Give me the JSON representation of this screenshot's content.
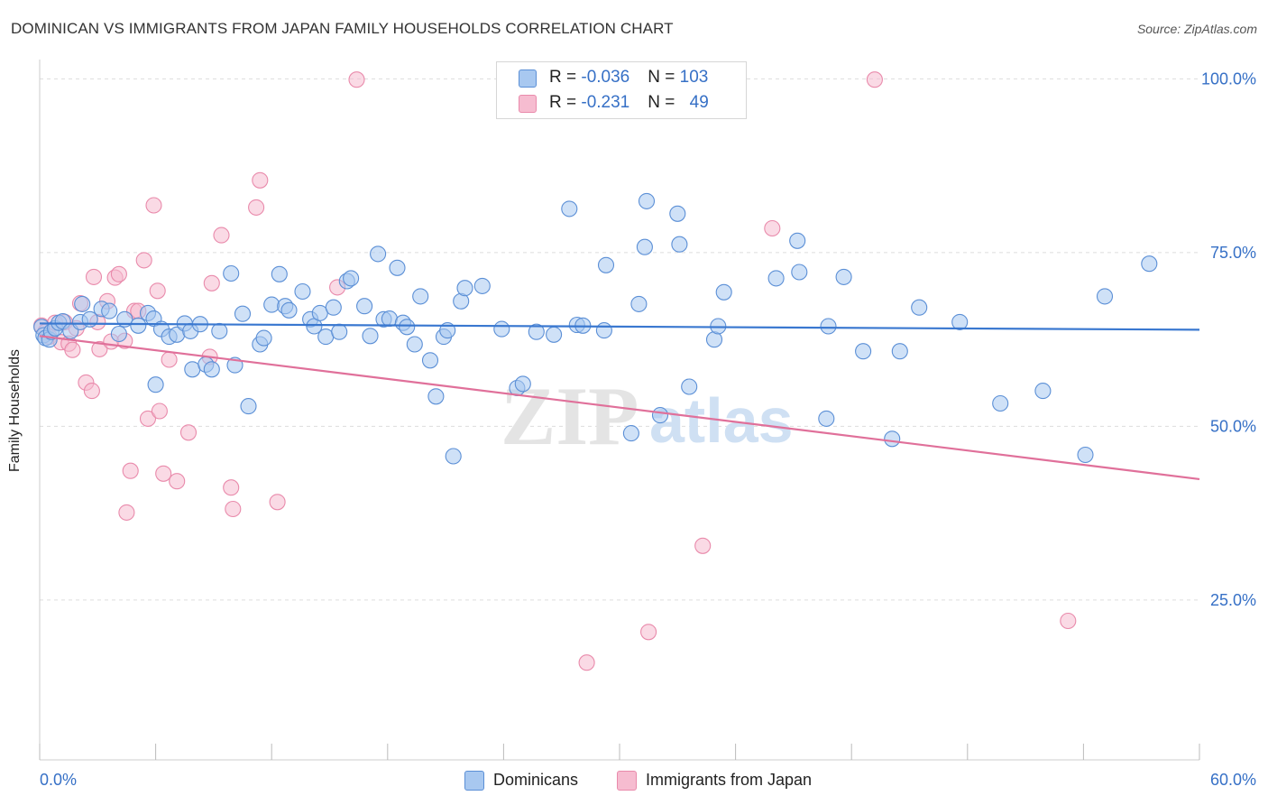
{
  "title": "DOMINICAN VS IMMIGRANTS FROM JAPAN FAMILY HOUSEHOLDS CORRELATION CHART",
  "source": "Source: ZipAtlas.com",
  "watermark": {
    "zip": "ZIP",
    "atlas": "atlas"
  },
  "colors": {
    "blue_fill": "#a8c8f0",
    "blue_stroke": "#5b8fd6",
    "blue_line": "#3a78d0",
    "pink_fill": "#f6bcd0",
    "pink_stroke": "#e98aab",
    "pink_line": "#e0709a",
    "axis_text": "#3670c6",
    "grid": "#dddddd"
  },
  "legend": {
    "rows": [
      {
        "r_label": "R = ",
        "r_value": "-0.036",
        "n_label": "N = ",
        "n_value": "103"
      },
      {
        "r_label": "R = ",
        "r_value": " -0.231",
        "n_label": "N = ",
        "n_value": "49"
      }
    ]
  },
  "bottom_legend": {
    "series1": "Dominicans",
    "series2": "Immigrants from Japan"
  },
  "chart_data": {
    "type": "scatter",
    "title": "DOMINICAN VS IMMIGRANTS FROM JAPAN FAMILY HOUSEHOLDS CORRELATION CHART",
    "xlabel": "",
    "ylabel": "Family Households",
    "xlim": [
      0,
      60
    ],
    "ylim": [
      2,
      102
    ],
    "x_tick_labels": [
      "0.0%",
      "60.0%"
    ],
    "y_ticks": [
      25,
      50,
      75,
      100
    ],
    "y_tick_labels": [
      "25.0%",
      "50.0%",
      "75.0%",
      "100.0%"
    ],
    "grid": true,
    "legend_position": "top-center",
    "series": [
      {
        "name": "Dominicans",
        "r": -0.036,
        "n": 103,
        "trend": {
          "x": [
            0,
            60
          ],
          "y": [
            64.8,
            63.9
          ]
        },
        "points": [
          [
            0.1,
            64.3
          ],
          [
            0.2,
            63.1
          ],
          [
            0.3,
            62.7
          ],
          [
            0.5,
            62.5
          ],
          [
            0.6,
            63.6
          ],
          [
            0.8,
            64.1
          ],
          [
            1.0,
            64.9
          ],
          [
            1.2,
            65.1
          ],
          [
            1.6,
            63.7
          ],
          [
            2.1,
            65.0
          ],
          [
            2.2,
            67.6
          ],
          [
            2.6,
            65.4
          ],
          [
            3.2,
            66.9
          ],
          [
            3.6,
            66.6
          ],
          [
            4.1,
            63.3
          ],
          [
            4.4,
            65.4
          ],
          [
            5.1,
            64.5
          ],
          [
            5.6,
            66.3
          ],
          [
            5.9,
            65.5
          ],
          [
            6.0,
            56.0
          ],
          [
            6.3,
            64.0
          ],
          [
            6.7,
            62.9
          ],
          [
            7.1,
            63.2
          ],
          [
            7.5,
            64.8
          ],
          [
            7.8,
            63.7
          ],
          [
            7.9,
            58.2
          ],
          [
            8.3,
            64.7
          ],
          [
            8.6,
            58.9
          ],
          [
            8.9,
            58.2
          ],
          [
            9.3,
            63.7
          ],
          [
            9.9,
            72.0
          ],
          [
            10.1,
            58.8
          ],
          [
            10.5,
            66.2
          ],
          [
            10.8,
            52.9
          ],
          [
            11.4,
            61.8
          ],
          [
            11.6,
            62.7
          ],
          [
            12.0,
            67.5
          ],
          [
            12.4,
            71.9
          ],
          [
            12.7,
            67.3
          ],
          [
            12.9,
            66.7
          ],
          [
            13.6,
            69.4
          ],
          [
            14.0,
            65.4
          ],
          [
            14.2,
            64.4
          ],
          [
            14.5,
            66.3
          ],
          [
            14.8,
            62.9
          ],
          [
            15.2,
            67.1
          ],
          [
            15.5,
            63.6
          ],
          [
            15.9,
            70.9
          ],
          [
            16.1,
            71.3
          ],
          [
            16.8,
            67.3
          ],
          [
            17.1,
            63.0
          ],
          [
            17.5,
            74.8
          ],
          [
            17.8,
            65.4
          ],
          [
            18.1,
            65.5
          ],
          [
            18.5,
            72.8
          ],
          [
            18.8,
            64.9
          ],
          [
            19.0,
            64.3
          ],
          [
            19.4,
            61.8
          ],
          [
            19.7,
            68.7
          ],
          [
            20.2,
            59.5
          ],
          [
            20.5,
            54.3
          ],
          [
            20.9,
            62.9
          ],
          [
            21.1,
            63.8
          ],
          [
            21.4,
            45.7
          ],
          [
            21.8,
            68.0
          ],
          [
            22.0,
            69.9
          ],
          [
            22.9,
            70.2
          ],
          [
            23.9,
            64.0
          ],
          [
            24.7,
            55.5
          ],
          [
            25.0,
            56.1
          ],
          [
            25.7,
            63.6
          ],
          [
            26.6,
            63.2
          ],
          [
            27.4,
            81.3
          ],
          [
            27.8,
            64.6
          ],
          [
            28.1,
            64.5
          ],
          [
            29.2,
            63.8
          ],
          [
            29.3,
            73.2
          ],
          [
            30.6,
            49.0
          ],
          [
            31.0,
            67.6
          ],
          [
            31.3,
            75.8
          ],
          [
            31.4,
            82.4
          ],
          [
            32.1,
            51.6
          ],
          [
            33.0,
            80.6
          ],
          [
            33.1,
            76.2
          ],
          [
            33.6,
            55.7
          ],
          [
            34.9,
            62.5
          ],
          [
            35.1,
            64.4
          ],
          [
            35.4,
            69.3
          ],
          [
            38.1,
            71.3
          ],
          [
            39.2,
            76.7
          ],
          [
            39.3,
            72.2
          ],
          [
            40.7,
            51.1
          ],
          [
            40.8,
            64.4
          ],
          [
            41.6,
            71.5
          ],
          [
            42.6,
            60.8
          ],
          [
            44.1,
            48.2
          ],
          [
            44.5,
            60.8
          ],
          [
            45.5,
            67.1
          ],
          [
            47.6,
            65.0
          ],
          [
            49.7,
            53.3
          ],
          [
            51.9,
            55.1
          ],
          [
            54.1,
            45.9
          ],
          [
            55.1,
            68.7
          ],
          [
            57.4,
            73.4
          ]
        ]
      },
      {
        "name": "Immigrants from Japan",
        "r": -0.231,
        "n": 49,
        "trend": {
          "x": [
            0,
            60
          ],
          "y": [
            63.0,
            42.4
          ]
        },
        "points": [
          [
            0.1,
            64.5
          ],
          [
            0.3,
            63.6
          ],
          [
            0.5,
            62.9
          ],
          [
            0.8,
            64.9
          ],
          [
            1.1,
            62.1
          ],
          [
            1.3,
            65.0
          ],
          [
            1.5,
            61.9
          ],
          [
            1.7,
            61.0
          ],
          [
            1.9,
            64.1
          ],
          [
            2.1,
            67.7
          ],
          [
            2.4,
            56.3
          ],
          [
            2.7,
            55.1
          ],
          [
            2.8,
            71.5
          ],
          [
            3.0,
            65.0
          ],
          [
            3.1,
            61.1
          ],
          [
            3.5,
            68.0
          ],
          [
            3.7,
            62.2
          ],
          [
            3.9,
            71.4
          ],
          [
            4.1,
            71.9
          ],
          [
            4.4,
            62.3
          ],
          [
            4.5,
            37.6
          ],
          [
            4.7,
            43.6
          ],
          [
            4.9,
            66.6
          ],
          [
            5.1,
            66.6
          ],
          [
            5.4,
            73.9
          ],
          [
            5.6,
            51.1
          ],
          [
            5.9,
            81.8
          ],
          [
            6.1,
            69.5
          ],
          [
            6.2,
            52.2
          ],
          [
            6.4,
            43.2
          ],
          [
            6.7,
            59.6
          ],
          [
            7.1,
            42.1
          ],
          [
            7.7,
            49.1
          ],
          [
            8.8,
            60.0
          ],
          [
            8.9,
            70.6
          ],
          [
            9.4,
            77.5
          ],
          [
            9.9,
            41.2
          ],
          [
            10.0,
            38.1
          ],
          [
            11.2,
            81.5
          ],
          [
            11.4,
            85.4
          ],
          [
            12.3,
            39.1
          ],
          [
            15.4,
            70.0
          ],
          [
            16.4,
            99.9
          ],
          [
            28.3,
            16.0
          ],
          [
            31.5,
            20.4
          ],
          [
            34.3,
            32.8
          ],
          [
            37.9,
            78.5
          ],
          [
            43.2,
            99.9
          ],
          [
            53.2,
            22.0
          ]
        ]
      }
    ]
  }
}
